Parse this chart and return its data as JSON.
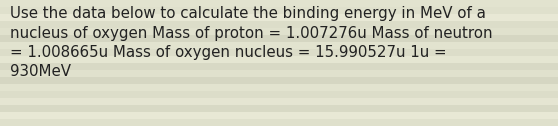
{
  "text": "Use the data below to calculate the binding energy in MeV of a\nnucleus of oxygen Mass of proton = 1.007276u Mass of neutron\n= 1.008665u Mass of oxygen nucleus = 15.990527u 1u =\n930MeV",
  "background_color": "#edecd8",
  "stripe_colors": [
    "#e8e7d0",
    "#dddcca",
    "#e8e7d0",
    "#d8d9c4",
    "#e0dfcc"
  ],
  "text_color": "#222222",
  "font_size": 10.8,
  "fig_width": 5.58,
  "fig_height": 1.26,
  "dpi": 100,
  "n_stripes": 18
}
